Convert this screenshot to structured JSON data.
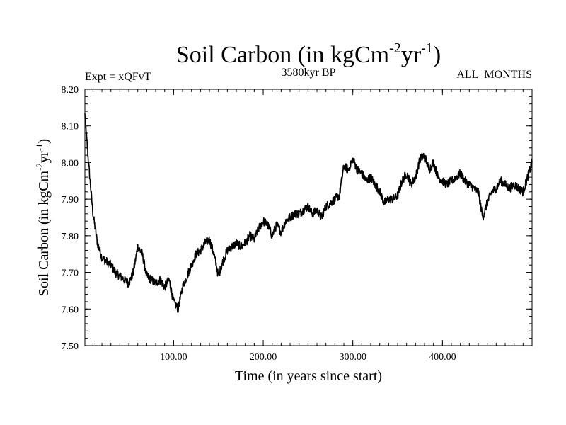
{
  "chart_data": {
    "type": "line",
    "title": "Soil Carbon (in kgCm",
    "title_sup1": "-2",
    "title_mid": "yr",
    "title_sup2": "-1",
    "title_end": ")",
    "subtitle": "3580kyr BP",
    "expt_label": "Expt = xQFvT",
    "months_label": "ALL_MONTHS",
    "xlabel": "Time (in years since start)",
    "ylabel": "Soil Carbon (in kgCm",
    "ylabel_sup1": "-2",
    "ylabel_mid": "yr",
    "ylabel_sup2": "-1",
    "ylabel_end": ")",
    "xlim": [
      1,
      500
    ],
    "ylim": [
      7.5,
      8.2
    ],
    "xticks": [
      100,
      200,
      300,
      400
    ],
    "xtick_labels": [
      "100.00",
      "200.00",
      "300.00",
      "400.00"
    ],
    "yticks": [
      7.5,
      7.6,
      7.7,
      7.8,
      7.9,
      8.0,
      8.1,
      8.2
    ],
    "ytick_labels": [
      "7.50",
      "7.60",
      "7.70",
      "7.80",
      "7.90",
      "8.00",
      "8.10",
      "8.20"
    ],
    "grid": false,
    "series": [
      {
        "name": "Soil Carbon",
        "color": "#000000",
        "x": [
          1,
          5,
          10,
          15,
          20,
          25,
          30,
          35,
          40,
          45,
          50,
          55,
          60,
          65,
          70,
          75,
          80,
          85,
          90,
          95,
          100,
          105,
          110,
          115,
          120,
          125,
          130,
          135,
          140,
          145,
          150,
          155,
          160,
          165,
          170,
          175,
          180,
          185,
          190,
          195,
          200,
          205,
          210,
          215,
          220,
          225,
          230,
          235,
          240,
          245,
          250,
          255,
          260,
          265,
          270,
          275,
          280,
          285,
          290,
          295,
          300,
          305,
          310,
          315,
          320,
          325,
          330,
          335,
          340,
          345,
          350,
          355,
          360,
          365,
          370,
          375,
          380,
          385,
          390,
          395,
          400,
          405,
          410,
          415,
          420,
          425,
          430,
          435,
          440,
          445,
          450,
          455,
          460,
          465,
          470,
          475,
          480,
          485,
          490,
          495,
          500
        ],
        "values": [
          8.13,
          8.0,
          7.86,
          7.78,
          7.74,
          7.73,
          7.72,
          7.7,
          7.69,
          7.68,
          7.67,
          7.7,
          7.77,
          7.75,
          7.69,
          7.68,
          7.67,
          7.68,
          7.66,
          7.68,
          7.62,
          7.6,
          7.66,
          7.69,
          7.72,
          7.75,
          7.76,
          7.78,
          7.79,
          7.75,
          7.69,
          7.73,
          7.76,
          7.77,
          7.78,
          7.77,
          7.78,
          7.8,
          7.79,
          7.82,
          7.84,
          7.83,
          7.8,
          7.83,
          7.81,
          7.84,
          7.85,
          7.86,
          7.86,
          7.87,
          7.88,
          7.86,
          7.87,
          7.85,
          7.88,
          7.89,
          7.9,
          7.91,
          7.99,
          7.98,
          8.01,
          7.98,
          7.97,
          7.95,
          7.96,
          7.94,
          7.92,
          7.89,
          7.9,
          7.9,
          7.91,
          7.95,
          7.97,
          7.94,
          7.96,
          8.01,
          8.02,
          7.98,
          8.0,
          7.96,
          7.95,
          7.94,
          7.95,
          7.96,
          7.97,
          7.95,
          7.94,
          7.93,
          7.92,
          7.85,
          7.89,
          7.92,
          7.93,
          7.95,
          7.94,
          7.93,
          7.94,
          7.93,
          7.92,
          7.96,
          8.0
        ]
      }
    ]
  }
}
